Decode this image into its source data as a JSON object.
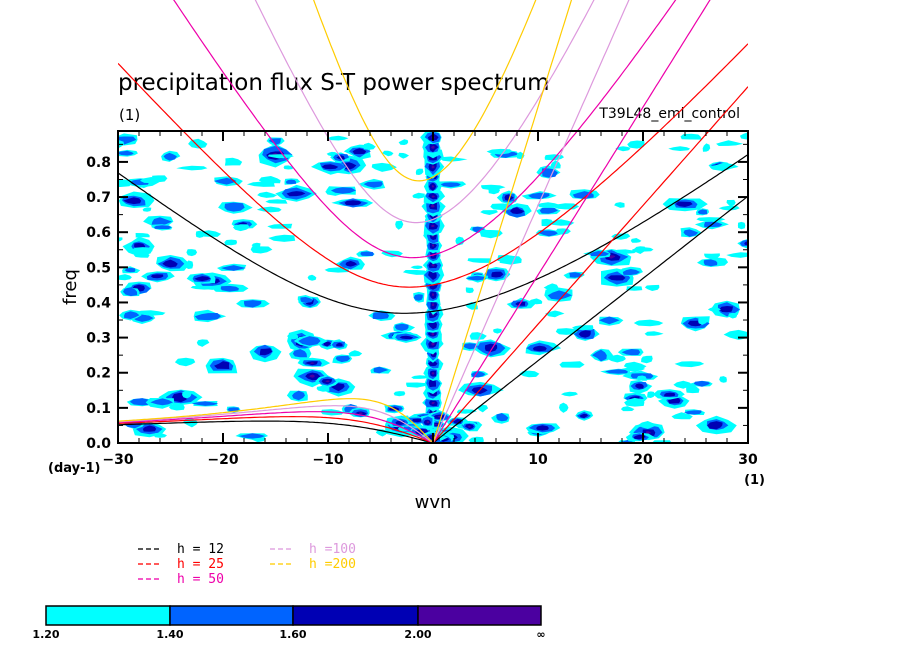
{
  "chart_data": {
    "type": "heatmap",
    "subtype": "filled-contour wavenumber-frequency spectrum with dispersion curves",
    "title": "precipitation flux S-T power spectrum",
    "subtitle": "(1)",
    "run_label": "T39L48_eml_control",
    "xlabel": "wvn",
    "ylabel": "freq",
    "x_unit": "(1)",
    "y_unit": "(day-1)",
    "xlim": [
      -30,
      30
    ],
    "ylim": [
      0,
      0.888
    ],
    "x_ticks": [
      -30,
      -20,
      -10,
      0,
      10,
      20,
      30
    ],
    "x_tick_labels": [
      "−30",
      "−20",
      "−10",
      "0",
      "10",
      "20",
      "30"
    ],
    "y_ticks": [
      0.0,
      0.1,
      0.2,
      0.3,
      0.4,
      0.5,
      0.6,
      0.7,
      0.8
    ],
    "y_tick_labels": [
      "0.0",
      "0.1",
      "0.2",
      "0.3",
      "0.4",
      "0.5",
      "0.6",
      "0.7",
      "0.8"
    ],
    "contour_levels": [
      1.2,
      1.4,
      1.6,
      2.0
    ],
    "colorbar": {
      "labels": [
        "1.20",
        "1.40",
        "1.60",
        "2.00",
        "∞"
      ],
      "colors": [
        "#00ffff",
        "#0064ff",
        "#0000b4",
        "#4b00a0"
      ]
    },
    "dispersion_curves": {
      "equivalent_depths_m": [
        12,
        25,
        50,
        100,
        200
      ],
      "wave_types": [
        "Kelvin",
        "Equatorial Rossby n=1",
        "Inertia-Gravity n=1 (eastward)",
        "Inertia-Gravity n=1 (westward)"
      ],
      "colors": [
        "#000000",
        "#ff0000",
        "#ee00aa",
        "#dd99dd",
        "#ffcc00"
      ]
    },
    "legend": [
      {
        "label": "h = 12",
        "color": "#000000"
      },
      {
        "label": "h = 25",
        "color": "#ff0000"
      },
      {
        "label": "h = 50",
        "color": "#ee00aa"
      },
      {
        "label": "h =100",
        "color": "#dd99dd"
      },
      {
        "label": "h =200",
        "color": "#ffcc00"
      }
    ],
    "legend_marker": "---",
    "features": {
      "zonal_mean_column": {
        "wvn": 0,
        "freq_range": [
          0.03,
          0.88
        ],
        "max_level": 2.0
      },
      "blobs": [
        {
          "wvn": -12.5,
          "freq": 0.29,
          "level": 2.0
        },
        {
          "wvn": -11.5,
          "freq": 0.19,
          "level": 2.0
        },
        {
          "wvn": -9,
          "freq": 0.16,
          "level": 1.6
        },
        {
          "wvn": -16,
          "freq": 0.26,
          "level": 1.6
        },
        {
          "wvn": -20,
          "freq": 0.22,
          "level": 1.6
        },
        {
          "wvn": -24,
          "freq": 0.13,
          "level": 1.6
        },
        {
          "wvn": -27,
          "freq": 0.04,
          "level": 1.6
        },
        {
          "wvn": -28,
          "freq": 0.56,
          "level": 1.6
        },
        {
          "wvn": -28.5,
          "freq": 0.69,
          "level": 1.6
        },
        {
          "wvn": -28,
          "freq": 0.44,
          "level": 1.6
        },
        {
          "wvn": -25,
          "freq": 0.51,
          "level": 1.6
        },
        {
          "wvn": -26,
          "freq": 0.63,
          "level": 1.4
        },
        {
          "wvn": -15,
          "freq": 0.82,
          "level": 2.0
        },
        {
          "wvn": -13,
          "freq": 0.71,
          "level": 1.6
        },
        {
          "wvn": -19,
          "freq": 0.67,
          "level": 1.4
        },
        {
          "wvn": -21,
          "freq": 0.46,
          "level": 1.6
        },
        {
          "wvn": -7,
          "freq": 0.83,
          "level": 1.6
        },
        {
          "wvn": -8,
          "freq": 0.79,
          "level": 1.6
        },
        {
          "wvn": -3,
          "freq": 0.05,
          "level": 2.0
        },
        {
          "wvn": 1.5,
          "freq": 0.02,
          "level": 2.0
        },
        {
          "wvn": 4.5,
          "freq": 0.15,
          "level": 1.6
        },
        {
          "wvn": 5.5,
          "freq": 0.27,
          "level": 1.6
        },
        {
          "wvn": 6,
          "freq": 0.48,
          "level": 1.6
        },
        {
          "wvn": 8,
          "freq": 0.66,
          "level": 1.6
        },
        {
          "wvn": 11,
          "freq": 0.77,
          "level": 1.4
        },
        {
          "wvn": 17,
          "freq": 0.53,
          "level": 2.0
        },
        {
          "wvn": 14.5,
          "freq": 0.31,
          "level": 1.6
        },
        {
          "wvn": 17.5,
          "freq": 0.47,
          "level": 1.6
        },
        {
          "wvn": 24,
          "freq": 0.68,
          "level": 1.6
        },
        {
          "wvn": 25,
          "freq": 0.34,
          "level": 1.6
        },
        {
          "wvn": 23,
          "freq": 0.12,
          "level": 1.6
        },
        {
          "wvn": 20.5,
          "freq": 0.03,
          "level": 2.0
        },
        {
          "wvn": 27,
          "freq": 0.05,
          "level": 1.6
        },
        {
          "wvn": 28,
          "freq": 0.38,
          "level": 1.6
        },
        {
          "wvn": 16,
          "freq": 0.25,
          "level": 1.4
        },
        {
          "wvn": 12,
          "freq": 0.42,
          "level": 1.4
        }
      ]
    }
  }
}
